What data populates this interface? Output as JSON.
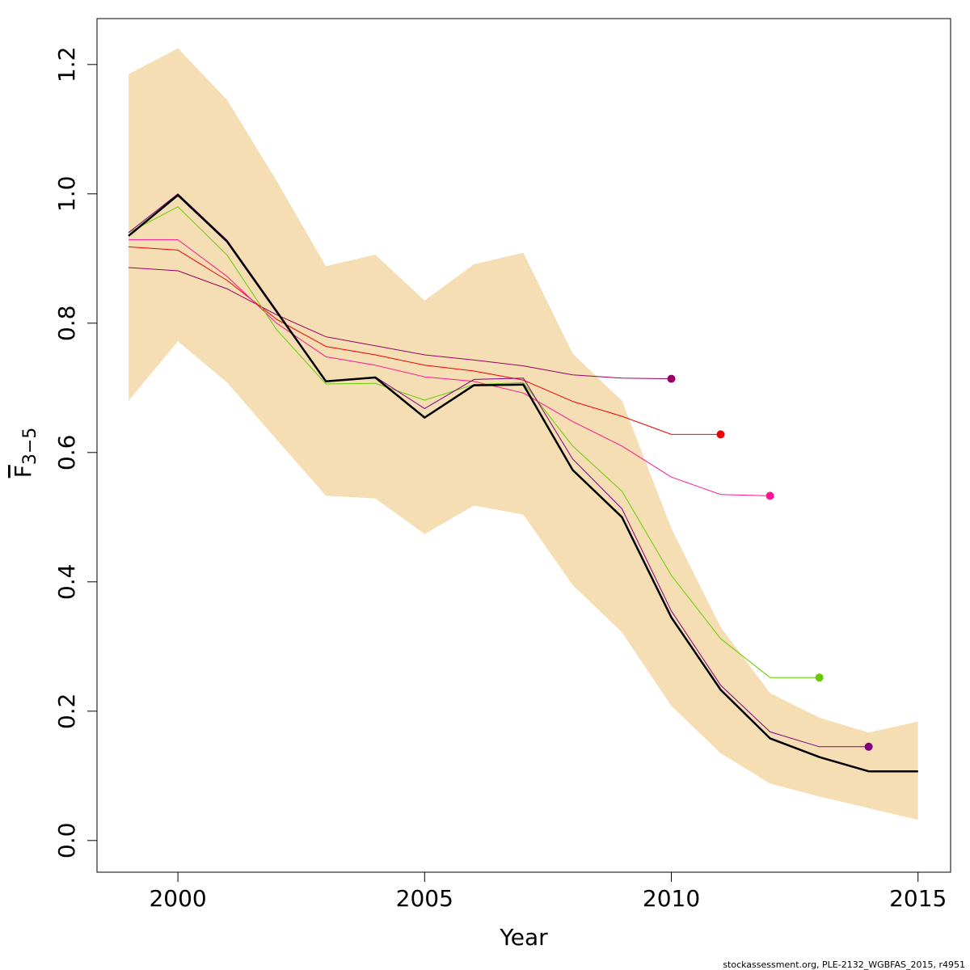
{
  "chart_data": {
    "type": "line",
    "x_label": "Year",
    "y_label": "F",
    "y_label_subscript": "3−5",
    "footnote": "stockassessment.org, PLE-2132_WGBFAS_2015, r4951",
    "x": [
      1999,
      2000,
      2001,
      2002,
      2003,
      2004,
      2005,
      2006,
      2007,
      2008,
      2009,
      2010,
      2011,
      2012,
      2013,
      2014,
      2015
    ],
    "xlim": [
      1998.36,
      2015.66
    ],
    "xticks": [
      2000,
      2005,
      2010,
      2015
    ],
    "ylim": [
      -0.049,
      1.271
    ],
    "yticks": [
      {
        "value": 0,
        "label": "0.0"
      },
      0.2,
      0.4,
      0.6,
      0.8,
      {
        "value": 1,
        "label": "1.0"
      },
      1.2
    ],
    "band": {
      "color": "#F5DEB3",
      "upper": [
        1.185,
        1.225,
        1.145,
        1.02,
        0.888,
        0.906,
        0.835,
        0.891,
        0.909,
        0.753,
        0.68,
        0.483,
        0.33,
        0.228,
        0.19,
        0.167,
        0.184
      ],
      "lower": [
        0.68,
        0.772,
        0.708,
        0.62,
        0.533,
        0.529,
        0.474,
        0.518,
        0.504,
        0.395,
        0.322,
        0.208,
        0.135,
        0.088,
        0.068,
        0.05,
        0.032
      ]
    },
    "series": [
      {
        "color": "#990066",
        "line_width": 1,
        "end_marker": true,
        "values": [
          0.886,
          0.881,
          0.853,
          0.813,
          0.779,
          0.765,
          0.751,
          0.743,
          0.734,
          0.72,
          0.715,
          0.714,
          null,
          null,
          null,
          null,
          null
        ]
      },
      {
        "color": "#EE0000",
        "line_width": 1,
        "end_marker": true,
        "values": [
          0.918,
          0.913,
          0.866,
          0.806,
          0.764,
          0.751,
          0.735,
          0.726,
          0.712,
          0.679,
          0.656,
          0.628,
          0.628,
          null,
          null,
          null,
          null
        ]
      },
      {
        "color": "#FF1493",
        "line_width": 1,
        "end_marker": true,
        "values": [
          0.929,
          0.929,
          0.872,
          0.8,
          0.748,
          0.735,
          0.717,
          0.71,
          0.692,
          0.648,
          0.61,
          0.562,
          0.535,
          0.533,
          null,
          null,
          null
        ]
      },
      {
        "color": "#66CC00",
        "line_width": 1,
        "end_marker": true,
        "values": [
          0.94,
          0.98,
          0.905,
          0.79,
          0.706,
          0.707,
          0.681,
          0.705,
          0.708,
          0.61,
          0.54,
          0.41,
          0.312,
          0.252,
          0.252,
          null,
          null
        ]
      },
      {
        "color": "#800080",
        "line_width": 1,
        "end_marker": true,
        "values": [
          0.94,
          1.0,
          0.928,
          0.82,
          0.71,
          0.717,
          0.668,
          0.713,
          0.715,
          0.59,
          0.513,
          0.355,
          0.24,
          0.168,
          0.145,
          0.145,
          null
        ]
      },
      {
        "color": "#000000",
        "line_width": 2.5,
        "end_marker": false,
        "values": [
          0.935,
          0.998,
          0.926,
          0.818,
          0.71,
          0.716,
          0.654,
          0.704,
          0.705,
          0.573,
          0.5,
          0.345,
          0.233,
          0.158,
          0.129,
          0.107,
          0.107
        ]
      }
    ]
  }
}
